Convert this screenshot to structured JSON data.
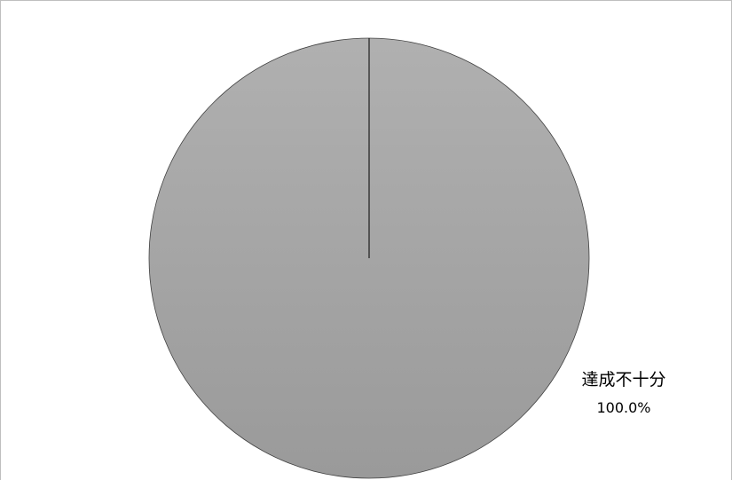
{
  "chart_data": {
    "type": "pie",
    "title": "",
    "slices": [
      {
        "label": "達成不十分",
        "value": 100.0,
        "value_label": "100.0%",
        "color": "#a6a6a6"
      }
    ],
    "start_angle_deg": 0,
    "direction": "clockwise",
    "legend": "none"
  }
}
